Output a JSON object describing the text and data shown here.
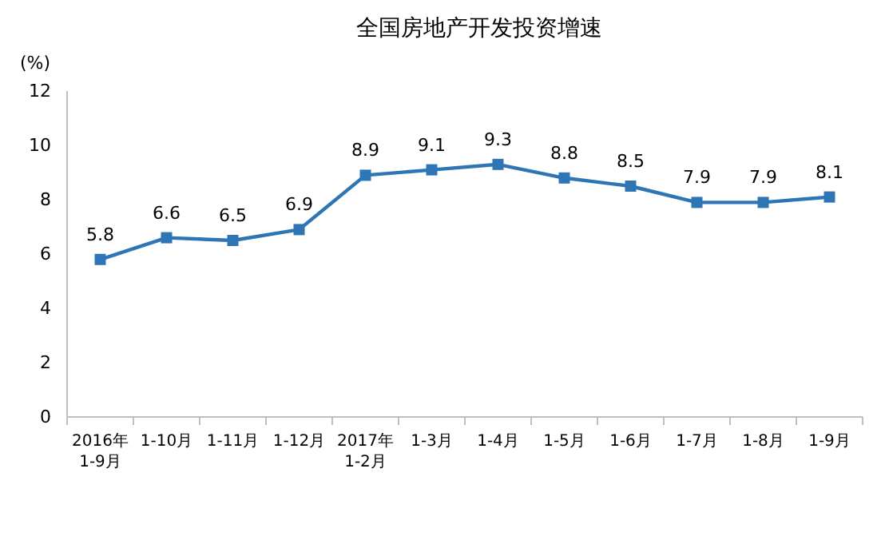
{
  "chart_data": {
    "type": "line",
    "title": "全国房地产开发投资增速",
    "ylabel": "(%)",
    "categories": [
      "2016年\n1-9月",
      "1-10月",
      "1-11月",
      "1-12月",
      "2017年\n1-2月",
      "1-3月",
      "1-4月",
      "1-5月",
      "1-6月",
      "1-7月",
      "1-8月",
      "1-9月"
    ],
    "series": [
      {
        "color": "#2e75b6",
        "values": [
          5.8,
          6.6,
          6.5,
          6.9,
          8.9,
          9.1,
          9.3,
          8.8,
          8.5,
          7.9,
          7.9,
          8.1
        ]
      }
    ],
    "ylim": [
      0,
      12
    ],
    "yticks": [
      0,
      2,
      4,
      6,
      8,
      10,
      12
    ],
    "marker": "square",
    "data_labels": true
  }
}
